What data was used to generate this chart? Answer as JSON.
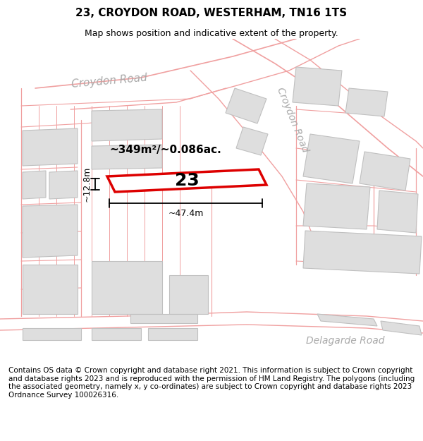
{
  "title": "23, CROYDON ROAD, WESTERHAM, TN16 1TS",
  "subtitle": "Map shows position and indicative extent of the property.",
  "footer": "Contains OS data © Crown copyright and database right 2021. This information is subject to Crown copyright and database rights 2023 and is reproduced with the permission of HM Land Registry. The polygons (including the associated geometry, namely x, y co-ordinates) are subject to Crown copyright and database rights 2023 Ordnance Survey 100026316.",
  "bg_color": "#f8f7f5",
  "building_fill": "#dedede",
  "building_edge": "#c0c0c0",
  "highlight_fill": "#ffffff",
  "highlight_edge": "#dd0000",
  "road_line_color": "#f0a0a0",
  "boundary_line_color": "#f0a0a0",
  "label_road1": "Croydon Road",
  "label_road2": "Croydon Road",
  "label_road3": "Delagarde Road",
  "area_label": "~349m²/~0.086ac.",
  "property_number": "23",
  "dim_width": "~47.4m",
  "dim_height": "~12.8m",
  "title_fontsize": 11,
  "subtitle_fontsize": 9,
  "footer_fontsize": 7.5
}
